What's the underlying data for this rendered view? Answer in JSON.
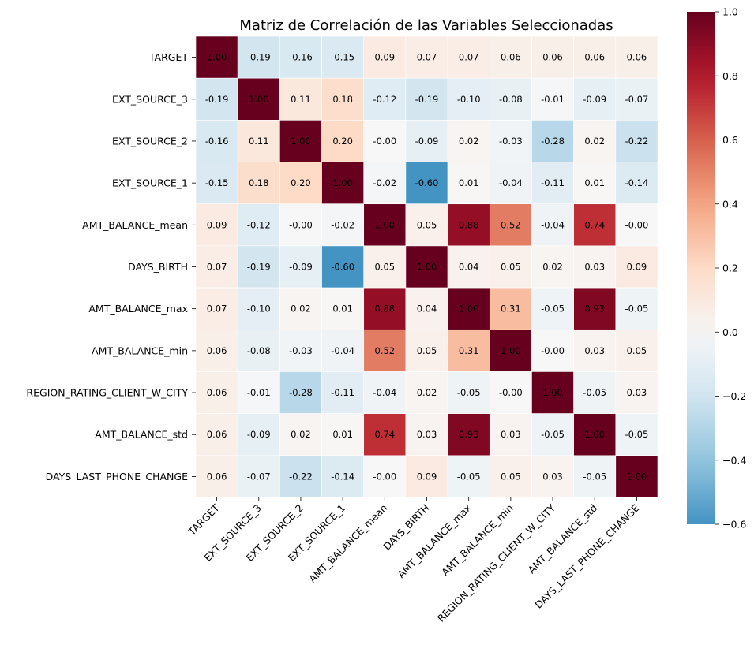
{
  "chart_data": {
    "type": "heatmap",
    "title": "Matriz de Correlación de las Variables Seleccionadas",
    "variables": [
      "TARGET",
      "EXT_SOURCE_3",
      "EXT_SOURCE_2",
      "EXT_SOURCE_1",
      "AMT_BALANCE_mean",
      "DAYS_BIRTH",
      "AMT_BALANCE_max",
      "AMT_BALANCE_min",
      "REGION_RATING_CLIENT_W_CITY",
      "AMT_BALANCE_std",
      "DAYS_LAST_PHONE_CHANGE"
    ],
    "matrix": [
      [
        1.0,
        -0.19,
        -0.16,
        -0.15,
        0.09,
        0.07,
        0.07,
        0.06,
        0.06,
        0.06,
        0.06
      ],
      [
        -0.19,
        1.0,
        0.11,
        0.18,
        -0.12,
        -0.19,
        -0.1,
        -0.08,
        -0.01,
        -0.09,
        -0.07
      ],
      [
        -0.16,
        0.11,
        1.0,
        0.2,
        -0.0,
        -0.09,
        0.02,
        -0.03,
        -0.28,
        0.02,
        -0.22
      ],
      [
        -0.15,
        0.18,
        0.2,
        1.0,
        -0.02,
        -0.6,
        0.01,
        -0.04,
        -0.11,
        0.01,
        -0.14
      ],
      [
        0.09,
        -0.12,
        -0.0,
        -0.02,
        1.0,
        0.05,
        0.88,
        0.52,
        -0.04,
        0.74,
        -0.0
      ],
      [
        0.07,
        -0.19,
        -0.09,
        -0.6,
        0.05,
        1.0,
        0.04,
        0.05,
        0.02,
        0.03,
        0.09
      ],
      [
        0.07,
        -0.1,
        0.02,
        0.01,
        0.88,
        0.04,
        1.0,
        0.31,
        -0.05,
        0.93,
        -0.05
      ],
      [
        0.06,
        -0.08,
        -0.03,
        -0.04,
        0.52,
        0.05,
        0.31,
        1.0,
        -0.0,
        0.03,
        0.05
      ],
      [
        0.06,
        -0.01,
        -0.28,
        -0.11,
        -0.04,
        0.02,
        -0.05,
        -0.0,
        1.0,
        -0.05,
        0.03
      ],
      [
        0.06,
        -0.09,
        0.02,
        0.01,
        0.74,
        0.03,
        0.93,
        0.03,
        -0.05,
        1.0,
        -0.05
      ],
      [
        0.06,
        -0.07,
        -0.22,
        -0.14,
        -0.0,
        0.09,
        -0.05,
        0.05,
        0.03,
        -0.05,
        1.0
      ]
    ],
    "cell_labels": [
      [
        "1.00",
        "-0.19",
        "-0.16",
        "-0.15",
        "0.09",
        "0.07",
        "0.07",
        "0.06",
        "0.06",
        "0.06",
        "0.06"
      ],
      [
        "-0.19",
        "1.00",
        "0.11",
        "0.18",
        "-0.12",
        "-0.19",
        "-0.10",
        "-0.08",
        "-0.01",
        "-0.09",
        "-0.07"
      ],
      [
        "-0.16",
        "0.11",
        "1.00",
        "0.20",
        "-0.00",
        "-0.09",
        "0.02",
        "-0.03",
        "-0.28",
        "0.02",
        "-0.22"
      ],
      [
        "-0.15",
        "0.18",
        "0.20",
        "1.00",
        "-0.02",
        "-0.60",
        "0.01",
        "-0.04",
        "-0.11",
        "0.01",
        "-0.14"
      ],
      [
        "0.09",
        "-0.12",
        "-0.00",
        "-0.02",
        "1.00",
        "0.05",
        "0.88",
        "0.52",
        "-0.04",
        "0.74",
        "-0.00"
      ],
      [
        "0.07",
        "-0.19",
        "-0.09",
        "-0.60",
        "0.05",
        "1.00",
        "0.04",
        "0.05",
        "0.02",
        "0.03",
        "0.09"
      ],
      [
        "0.07",
        "-0.10",
        "0.02",
        "0.01",
        "0.88",
        "0.04",
        "1.00",
        "0.31",
        "-0.05",
        "0.93",
        "-0.05"
      ],
      [
        "0.06",
        "-0.08",
        "-0.03",
        "-0.04",
        "0.52",
        "0.05",
        "0.31",
        "1.00",
        "-0.00",
        "0.03",
        "0.05"
      ],
      [
        "0.06",
        "-0.01",
        "-0.28",
        "-0.11",
        "-0.04",
        "0.02",
        "-0.05",
        "-0.00",
        "1.00",
        "-0.05",
        "0.03"
      ],
      [
        "0.06",
        "-0.09",
        "0.02",
        "0.01",
        "0.74",
        "0.03",
        "0.93",
        "0.03",
        "-0.05",
        "1.00",
        "-0.05"
      ],
      [
        "0.06",
        "-0.07",
        "-0.22",
        "-0.14",
        "-0.00",
        "0.09",
        "-0.05",
        "0.05",
        "0.03",
        "-0.05",
        "1.00"
      ]
    ],
    "colormap": "RdBu_r",
    "vmin": -0.6,
    "vmax": 1.0,
    "colorbar": {
      "ticks": [
        1.0,
        0.8,
        0.6,
        0.4,
        0.2,
        0.0,
        -0.2,
        -0.4,
        -0.6
      ],
      "tick_labels": [
        "1.0",
        "0.8",
        "0.6",
        "0.4",
        "0.2",
        "0.0",
        "−0.2",
        "−0.4",
        "−0.6"
      ],
      "placement": "right"
    },
    "xlabel": "",
    "ylabel": "",
    "grid": false
  }
}
